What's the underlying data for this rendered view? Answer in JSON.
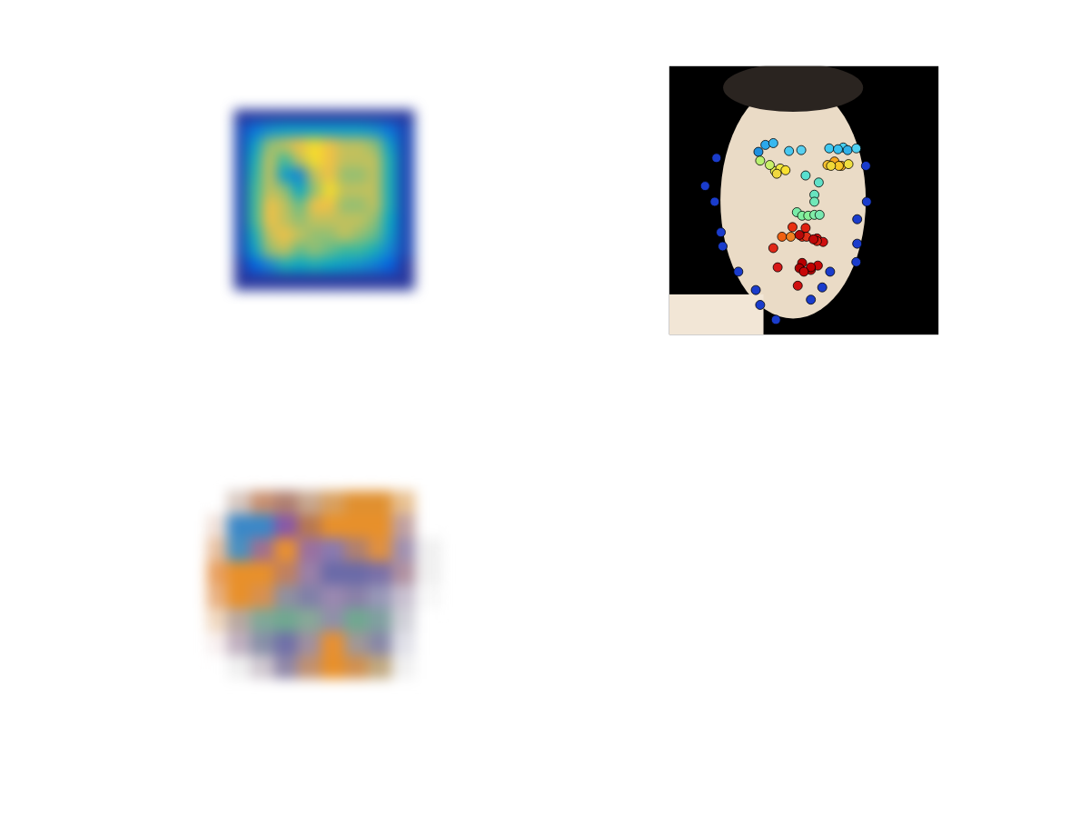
{
  "chart_data": [
    {
      "type": "heatmap",
      "tick_labels": false,
      "grid": false,
      "xlim": [
        0,
        12
      ],
      "ylim": [
        12,
        0
      ],
      "zlim": [
        0,
        1
      ],
      "cells": [
        [
          0.05,
          0.05,
          0.05,
          0.05,
          0.05,
          0.05,
          0.05,
          0.05,
          0.05,
          0.05,
          0.05,
          0.05
        ],
        [
          0.1,
          0.3,
          0.45,
          0.5,
          0.5,
          0.5,
          0.5,
          0.5,
          0.5,
          0.45,
          0.3,
          0.1
        ],
        [
          0.1,
          0.5,
          0.8,
          0.85,
          0.9,
          0.95,
          0.9,
          0.85,
          0.85,
          0.8,
          0.5,
          0.1
        ],
        [
          0.1,
          0.6,
          0.85,
          0.7,
          0.85,
          0.95,
          0.9,
          0.85,
          0.85,
          0.85,
          0.6,
          0.1
        ],
        [
          0.1,
          0.65,
          0.85,
          0.5,
          0.4,
          0.85,
          0.9,
          0.8,
          0.8,
          0.85,
          0.6,
          0.1
        ],
        [
          0.1,
          0.7,
          0.85,
          0.8,
          0.55,
          0.8,
          0.95,
          0.85,
          0.85,
          0.85,
          0.6,
          0.1
        ],
        [
          0.1,
          0.7,
          0.9,
          0.85,
          0.75,
          0.9,
          0.9,
          0.8,
          0.8,
          0.85,
          0.6,
          0.1
        ],
        [
          0.1,
          0.7,
          0.9,
          0.85,
          0.8,
          0.85,
          0.85,
          0.85,
          0.85,
          0.8,
          0.55,
          0.1
        ],
        [
          0.1,
          0.6,
          0.85,
          0.9,
          0.85,
          0.8,
          0.8,
          0.85,
          0.8,
          0.75,
          0.5,
          0.1
        ],
        [
          0.1,
          0.5,
          0.8,
          0.85,
          0.75,
          0.8,
          0.75,
          0.7,
          0.7,
          0.6,
          0.4,
          0.1
        ],
        [
          0.05,
          0.2,
          0.4,
          0.6,
          0.55,
          0.6,
          0.55,
          0.5,
          0.45,
          0.35,
          0.2,
          0.05
        ],
        [
          0.05,
          0.05,
          0.05,
          0.05,
          0.05,
          0.05,
          0.05,
          0.05,
          0.05,
          0.05,
          0.05,
          0.05
        ]
      ]
    },
    {
      "type": "scatter",
      "tick_labels": false,
      "grid": false,
      "marker": "circle",
      "xlim": [
        0,
        308
      ],
      "ylim": [
        307,
        0
      ],
      "x": [
        54,
        41,
        52,
        59,
        61,
        79,
        99,
        104,
        122,
        162,
        175,
        184,
        214,
        215,
        215,
        226,
        225,
        102,
        110,
        119,
        137,
        151,
        183,
        199,
        204,
        214,
        193,
        156,
        171,
        166,
        166,
        146,
        152,
        159,
        166,
        172,
        104,
        121,
        127,
        133,
        123,
        115,
        181,
        189,
        197,
        205,
        194,
        185,
        129,
        141,
        156,
        169,
        176,
        170,
        162,
        152,
        124,
        119,
        139,
        152,
        157,
        169,
        162,
        149,
        147,
        154,
        149,
        165
      ],
      "y": [
        105,
        137,
        155,
        190,
        206,
        235,
        256,
        273,
        290,
        267,
        253,
        235,
        224,
        203,
        175,
        155,
        114,
        98,
        90,
        88,
        97,
        96,
        94,
        93,
        96,
        94,
        95,
        125,
        133,
        147,
        155,
        167,
        171,
        171,
        170,
        170,
        108,
        120,
        117,
        119,
        123,
        113,
        113,
        109,
        114,
        112,
        114,
        114,
        195,
        184,
        185,
        197,
        201,
        228,
        233,
        225,
        230,
        208,
        195,
        195,
        195,
        200,
        230,
        231,
        251,
        235,
        193,
        198
      ],
      "colors": [
        "#1a3ccc",
        "#1a3ccc",
        "#1a3ccc",
        "#1a3ccc",
        "#1a3ccc",
        "#1a3ccc",
        "#1a3ccc",
        "#1a3ccc",
        "#1a3ccc",
        "#1a3ccc",
        "#1a3ccc",
        "#1a3ccc",
        "#1a3ccc",
        "#1a3ccc",
        "#1a3ccc",
        "#1a3ccc",
        "#1a3ccc",
        "#1e90e0",
        "#2aa8ec",
        "#38b8f0",
        "#48c8f0",
        "#58d0f0",
        "#40c8f0",
        "#48d0f0",
        "#30b0e8",
        "#50d0f0",
        "#38c0f0",
        "#58e0d0",
        "#60e0c8",
        "#68e4c0",
        "#70e8b8",
        "#78eca8",
        "#80f0a0",
        "#88f098",
        "#80eca8",
        "#78e8b0",
        "#b8f070",
        "#e8f050",
        "#f0e840",
        "#f8e030",
        "#f0d840",
        "#c8f068",
        "#f8c030",
        "#f8a820",
        "#f8b020",
        "#f0e040",
        "#f8c828",
        "#f0d838",
        "#f06010",
        "#e83010",
        "#e02010",
        "#d81010",
        "#d01010",
        "#c80808",
        "#c00808",
        "#b80000",
        "#d81818",
        "#e02818",
        "#f08020",
        "#e83818",
        "#e03018",
        "#d82010",
        "#c00000",
        "#b00000",
        "#d01010",
        "#c80808",
        "#b80808",
        "#c00808"
      ]
    },
    {
      "type": "heatmap",
      "tick_labels": false,
      "grid": false,
      "xlim": [
        0,
        10
      ],
      "ylim": [
        10,
        0
      ],
      "cell_colors": [
        [
          "#ffffff",
          "#ffffff",
          "#ffffff",
          "#ffffff",
          "#ffffff",
          "#ffffff",
          "#ffffff",
          "#ffffff",
          "#ffffff",
          "#ffffff"
        ],
        [
          "#ffffff",
          "#d8c8c0",
          "#c89070",
          "#b08070",
          "#c8a890",
          "#d8a060",
          "#e09030",
          "#e09030",
          "#e8c090",
          "#ffffff"
        ],
        [
          "#f0e0d8",
          "#3a88c8",
          "#3a88c8",
          "#8858a8",
          "#b87850",
          "#e8902a",
          "#e8902a",
          "#e8902a",
          "#c0a0a0",
          "#ffffff"
        ],
        [
          "#e8c0a0",
          "#4a90c0",
          "#a07090",
          "#e89030",
          "#9a70a0",
          "#8a7ab0",
          "#b08070",
          "#e09040",
          "#a090b0",
          "#f0f0f0"
        ],
        [
          "#e8a060",
          "#e8902a",
          "#e8902a",
          "#c08060",
          "#9a80a8",
          "#6a6aa8",
          "#6a6aa8",
          "#7a70a8",
          "#b090a0",
          "#f0f0f0"
        ],
        [
          "#e8b080",
          "#e8902a",
          "#d89050",
          "#9090a0",
          "#8080a8",
          "#9a88b0",
          "#8a80a8",
          "#9898b8",
          "#c8c0d0",
          "#f8f8f8"
        ],
        [
          "#f0d8c0",
          "#b8a8a0",
          "#80a898",
          "#70a890",
          "#88a898",
          "#9090a8",
          "#70a890",
          "#80a0a0",
          "#d0d0d8",
          "#ffffff"
        ],
        [
          "#f8f0f0",
          "#c0b0c0",
          "#8890a8",
          "#7070a8",
          "#a090a0",
          "#e89030",
          "#a09898",
          "#8888a8",
          "#e0e0e8",
          "#ffffff"
        ],
        [
          "#ffffff",
          "#f0f0f0",
          "#d0c8d0",
          "#9088a8",
          "#c09070",
          "#e8902a",
          "#d09050",
          "#c0a880",
          "#f0f0f0",
          "#ffffff"
        ],
        [
          "#ffffff",
          "#ffffff",
          "#ffffff",
          "#ffffff",
          "#ffffff",
          "#ffffff",
          "#ffffff",
          "#ffffff",
          "#ffffff",
          "#ffffff"
        ]
      ]
    }
  ]
}
